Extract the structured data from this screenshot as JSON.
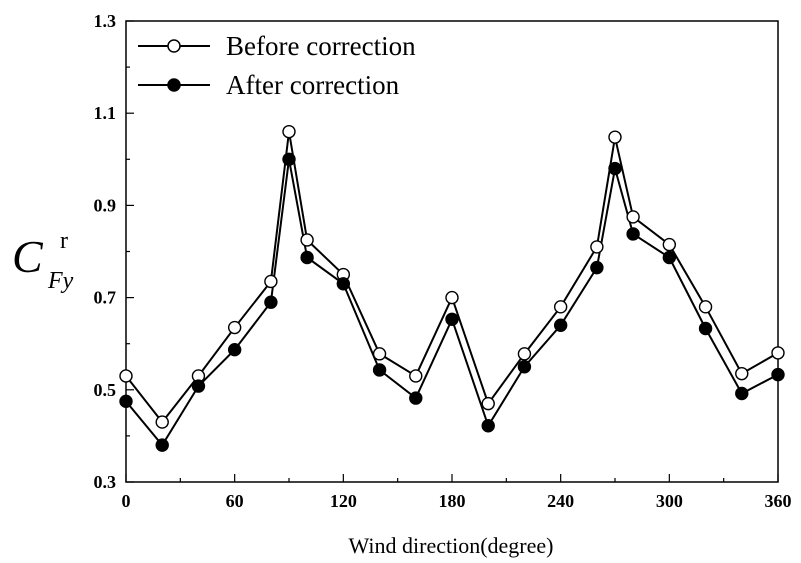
{
  "chart_data": {
    "type": "line",
    "xlabel": "Wind direction(degree)",
    "ylabel": {
      "main": "C",
      "subscript": "Fy",
      "superscript": "r"
    },
    "xlim": [
      0,
      360
    ],
    "ylim": [
      0.3,
      1.3
    ],
    "x_ticks": [
      0,
      60,
      120,
      180,
      240,
      300,
      360
    ],
    "y_ticks": [
      0.3,
      0.5,
      0.7,
      0.9,
      1.1,
      1.3
    ],
    "y_tick_labels": [
      "0.3",
      "0.5",
      "0.7",
      "0.9",
      "1.1",
      "1.3"
    ],
    "grid": false,
    "legend_position": "top-left",
    "x": [
      0,
      20,
      40,
      60,
      80,
      90,
      100,
      120,
      140,
      160,
      180,
      200,
      220,
      240,
      260,
      270,
      280,
      300,
      320,
      340,
      360
    ],
    "series": [
      {
        "name": "Before correction",
        "marker": "open-circle",
        "color": "#000000",
        "values": [
          0.53,
          0.43,
          0.53,
          0.635,
          0.735,
          1.06,
          0.825,
          0.75,
          0.578,
          0.53,
          0.7,
          0.47,
          0.578,
          0.68,
          0.81,
          1.048,
          0.875,
          0.815,
          0.68,
          0.535,
          0.58
        ]
      },
      {
        "name": "After correction",
        "marker": "filled-circle",
        "color": "#000000",
        "values": [
          0.475,
          0.38,
          0.508,
          0.587,
          0.69,
          1.0,
          0.787,
          0.73,
          0.543,
          0.482,
          0.653,
          0.422,
          0.55,
          0.64,
          0.765,
          0.98,
          0.838,
          0.787,
          0.633,
          0.492,
          0.533
        ]
      }
    ]
  }
}
